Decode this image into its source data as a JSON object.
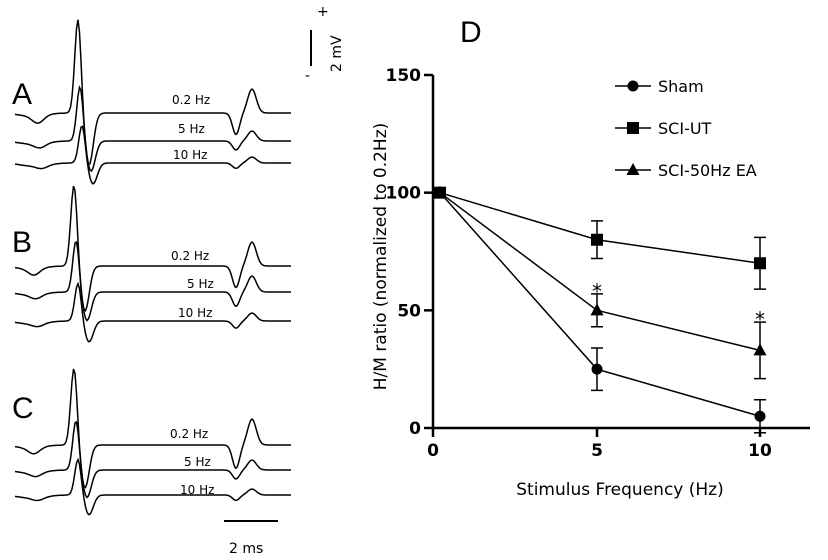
{
  "traces_panel": {
    "groups": [
      {
        "letter": "A",
        "labels": [
          "0.2 Hz",
          "5 Hz",
          "10 Hz"
        ]
      },
      {
        "letter": "B",
        "labels": [
          "0.2 Hz",
          "5 Hz",
          "10 Hz"
        ]
      },
      {
        "letter": "C",
        "labels": [
          "0.2 Hz",
          "5 Hz",
          "10 Hz"
        ]
      }
    ],
    "voltage_scale": {
      "label": "2 mV",
      "plus": "+",
      "minus": "-"
    },
    "time_scale": {
      "label": "2 ms"
    }
  },
  "chart_data": {
    "type": "line",
    "panel_label": "D",
    "title": "",
    "xlabel": "Stimulus Frequency (Hz)",
    "ylabel": "H/M ratio (normalized to 0.2Hz)",
    "xlim": [
      0,
      10
    ],
    "ylim": [
      0,
      150
    ],
    "xticks": [
      0,
      5,
      10
    ],
    "yticks": [
      0,
      50,
      100,
      150
    ],
    "x": [
      0.2,
      5,
      10
    ],
    "grid": false,
    "legend_position": "top-right",
    "series": [
      {
        "name": "Sham",
        "marker": "circle",
        "values": [
          100,
          25,
          5
        ],
        "error": [
          0,
          9,
          7
        ]
      },
      {
        "name": "SCI-UT",
        "marker": "square",
        "values": [
          100,
          80,
          70
        ],
        "error": [
          0,
          8,
          11
        ]
      },
      {
        "name": "SCI-50Hz EA",
        "marker": "triangle",
        "values": [
          100,
          50,
          33
        ],
        "error": [
          0,
          7,
          12
        ]
      }
    ],
    "annotations": [
      {
        "x": 5,
        "y": 61,
        "text": "*"
      },
      {
        "x": 10,
        "y": 49,
        "text": "*"
      }
    ]
  }
}
